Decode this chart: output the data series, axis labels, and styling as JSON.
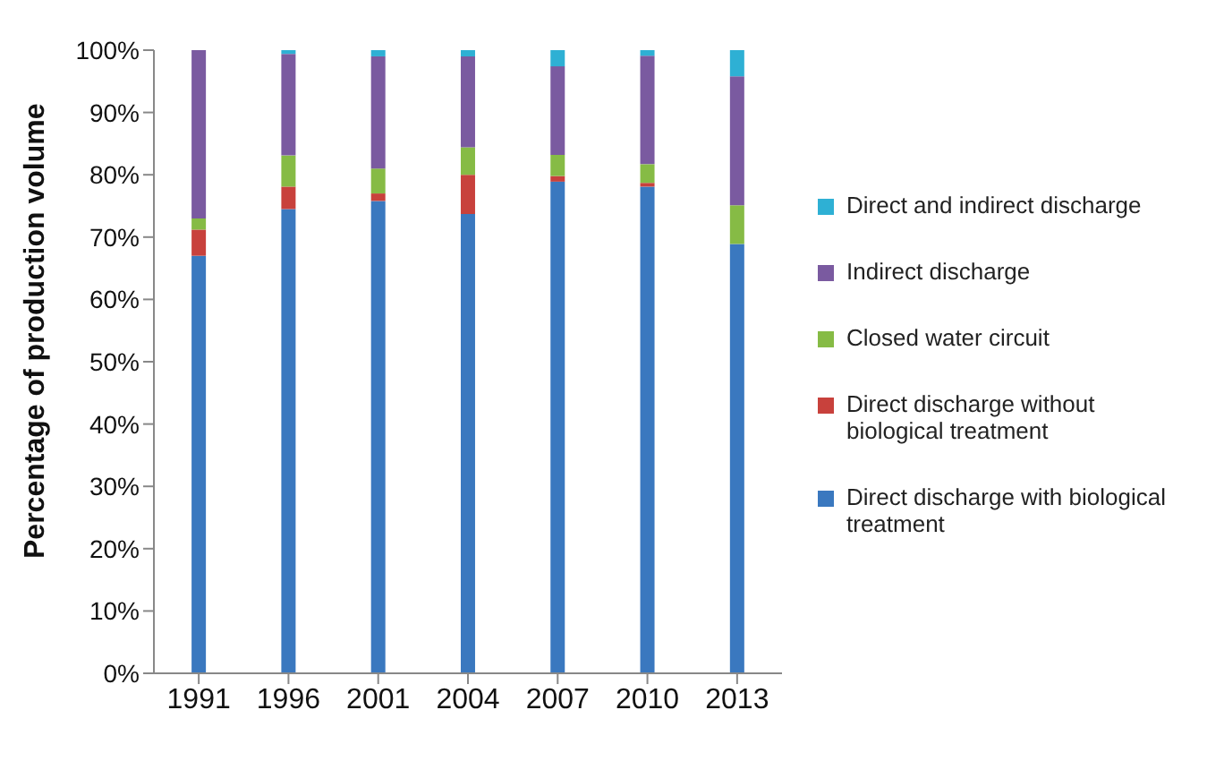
{
  "chart_data": {
    "type": "bar",
    "stacked": true,
    "ylabel": "Percentage of production volume",
    "categories": [
      "1991",
      "1996",
      "2001",
      "2004",
      "2007",
      "2010",
      "2013"
    ],
    "series": [
      {
        "name": "Direct discharge with biological treatment",
        "color": "#3a78bf",
        "values": [
          67.0,
          74.5,
          75.8,
          73.7,
          78.9,
          78.1,
          68.9
        ]
      },
      {
        "name": "Direct discharge without biological treatment",
        "color": "#c8413c",
        "values": [
          4.2,
          3.6,
          1.2,
          6.3,
          0.9,
          0.6,
          0
        ]
      },
      {
        "name": "Closed water circuit",
        "color": "#86bb45",
        "values": [
          1.8,
          5.0,
          4.0,
          4.4,
          3.4,
          3.0,
          6.2
        ]
      },
      {
        "name": "Indirect discharge",
        "color": "#7a5aa0",
        "values": [
          27.0,
          16.3,
          18.0,
          14.6,
          14.2,
          17.4,
          20.7
        ]
      },
      {
        "name": "Direct and indirect discharge",
        "color": "#2eb0d4",
        "values": [
          0,
          0.6,
          1.0,
          1.0,
          2.6,
          0.9,
          4.2
        ]
      }
    ],
    "ylim": [
      0,
      100
    ],
    "yticks": [
      {
        "value": 0,
        "label": "0%"
      },
      {
        "value": 10,
        "label": "10%"
      },
      {
        "value": 20,
        "label": "20%"
      },
      {
        "value": 30,
        "label": "30%"
      },
      {
        "value": 40,
        "label": "40%"
      },
      {
        "value": 50,
        "label": "50%"
      },
      {
        "value": 60,
        "label": "60%"
      },
      {
        "value": 70,
        "label": "70%"
      },
      {
        "value": 80,
        "label": "80%"
      },
      {
        "value": 90,
        "label": "90%"
      },
      {
        "value": 100,
        "label": "100%"
      }
    ],
    "grid": false,
    "legend": "right"
  }
}
